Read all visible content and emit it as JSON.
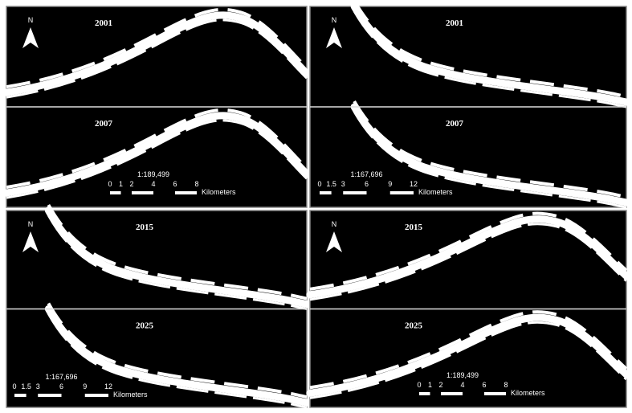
{
  "panels": [
    {
      "north": "N",
      "maps": [
        {
          "year": "2001"
        },
        {
          "year": "2007"
        }
      ],
      "scale": {
        "ratio": "1:189,499",
        "ticks": [
          0,
          1,
          2,
          4,
          6,
          8
        ],
        "unit": "Kilometers"
      }
    },
    {
      "north": "N",
      "maps": [
        {
          "year": "2001"
        },
        {
          "year": "2007"
        }
      ],
      "scale": {
        "ratio": "1:167,696",
        "ticks": [
          0,
          1.5,
          3,
          6,
          9,
          12
        ],
        "unit": "Kilometers"
      }
    },
    {
      "north": "N",
      "maps": [
        {
          "year": "2015"
        },
        {
          "year": "2025"
        }
      ],
      "scale": {
        "ratio": "1:167,696",
        "ticks": [
          0,
          1.5,
          3,
          6,
          9,
          12
        ],
        "unit": "Kilometers"
      }
    },
    {
      "north": "N",
      "maps": [
        {
          "year": "2015"
        },
        {
          "year": "2025"
        }
      ],
      "scale": {
        "ratio": "1:189,499",
        "ticks": [
          0,
          1,
          2,
          4,
          6,
          8
        ],
        "unit": "Kilometers"
      }
    }
  ]
}
